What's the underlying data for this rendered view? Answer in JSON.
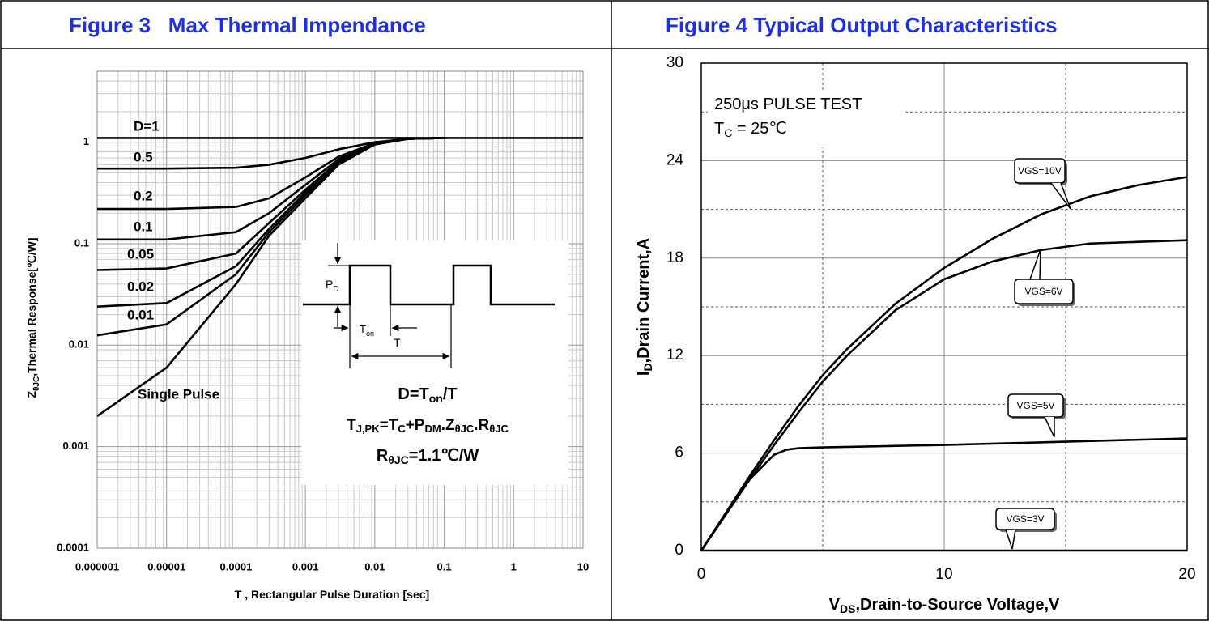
{
  "chart_data": [
    {
      "type": "line",
      "title": "Figure 3   Max Thermal Impendance",
      "x_label": [
        "T , Rectangular Pulse Duration [sec]"
      ],
      "y_label": [
        "Z",
        "θJC",
        ",Thermal Response[℃/W]"
      ],
      "xscale": "log",
      "yscale": "log",
      "grid": true,
      "xlim": [
        1e-06,
        10
      ],
      "xticks": [
        1e-06,
        1e-05,
        0.0001,
        0.001,
        0.01,
        0.1,
        1,
        10
      ],
      "ylim": [
        0.0001,
        5
      ],
      "yticks": [
        0.0001,
        0.001,
        0.01,
        0.1,
        1
      ],
      "x": [
        1e-06,
        1e-05,
        0.0001,
        0.0003,
        0.001,
        0.003,
        0.01,
        0.03,
        0.1
      ],
      "series": [
        {
          "name": "D=1",
          "color": "#000000",
          "x": [
            1e-06,
            10
          ],
          "values": [
            1.1,
            1.1
          ]
        },
        {
          "name": "0.5",
          "color": "#000000",
          "values": [
            0.55,
            0.55,
            0.56,
            0.6,
            0.7,
            0.85,
            1.0,
            1.08,
            1.1
          ]
        },
        {
          "name": "0.2",
          "color": "#000000",
          "values": [
            0.22,
            0.22,
            0.23,
            0.28,
            0.45,
            0.72,
            0.98,
            1.08,
            1.1
          ]
        },
        {
          "name": "0.1",
          "color": "#000000",
          "values": [
            0.11,
            0.11,
            0.13,
            0.2,
            0.38,
            0.68,
            0.97,
            1.08,
            1.1
          ]
        },
        {
          "name": "0.05",
          "color": "#000000",
          "values": [
            0.055,
            0.057,
            0.08,
            0.16,
            0.34,
            0.65,
            0.96,
            1.08,
            1.1
          ]
        },
        {
          "name": "0.02",
          "color": "#000000",
          "values": [
            0.024,
            0.026,
            0.06,
            0.14,
            0.32,
            0.63,
            0.96,
            1.08,
            1.1
          ]
        },
        {
          "name": "0.01",
          "color": "#000000",
          "values": [
            0.0125,
            0.016,
            0.05,
            0.13,
            0.3,
            0.62,
            0.95,
            1.08,
            1.1
          ]
        },
        {
          "name": "Single Pulse",
          "color": "#000000",
          "values": [
            0.002,
            0.006,
            0.04,
            0.12,
            0.28,
            0.6,
            0.95,
            1.08,
            1.1
          ]
        }
      ],
      "inset": {
        "pd": [
          "P",
          "D"
        ],
        "ton": [
          "T",
          "on"
        ],
        "t": [
          "T"
        ],
        "formula_1": [
          "D=T",
          "on",
          "/T"
        ],
        "formula_2": [
          "T",
          "J,PK",
          "=T",
          "C",
          "+P",
          "DM",
          ".Z",
          "θJC",
          ".R",
          "θJC"
        ],
        "formula_3": [
          "R",
          "θJC",
          "=1.1℃/W"
        ]
      }
    },
    {
      "type": "line",
      "title": "Figure 4 Typical Output Characteristics",
      "x_label": [
        "V",
        "DS",
        ",Drain-to-Source Voltage,V"
      ],
      "y_label": [
        "I",
        "D",
        ",Drain Current,A"
      ],
      "grid": true,
      "xlim": [
        0,
        20
      ],
      "xticks": [
        0,
        10,
        20
      ],
      "xminor": [
        5,
        15
      ],
      "ylim": [
        0,
        30
      ],
      "yticks": [
        0,
        6,
        12,
        18,
        24,
        30
      ],
      "yminor": [
        3,
        9,
        15,
        21,
        27
      ],
      "annotation_1": [
        "250μs PULSE TEST"
      ],
      "annotation_2": [
        "T",
        "C",
        " = 25℃"
      ],
      "x": [
        0,
        1,
        2,
        3,
        4,
        5,
        6,
        8,
        10,
        12,
        14,
        16,
        18,
        20
      ],
      "series": [
        {
          "name": "VGS=10V",
          "color": "#000000",
          "values": [
            0,
            2.3,
            4.6,
            6.8,
            8.9,
            10.8,
            12.4,
            15.2,
            17.4,
            19.2,
            20.7,
            21.8,
            22.5,
            23.0
          ]
        },
        {
          "name": "VGS=6V",
          "color": "#000000",
          "values": [
            0,
            2.2,
            4.4,
            6.5,
            8.5,
            10.4,
            12.0,
            14.8,
            16.7,
            17.8,
            18.5,
            18.9,
            19.0,
            19.1
          ]
        },
        {
          "name": "VGS=5V",
          "color": "#000000",
          "x": [
            0,
            1,
            2,
            3,
            3.5,
            4,
            5,
            10,
            15,
            20
          ],
          "values": [
            0,
            2.2,
            4.4,
            5.9,
            6.2,
            6.3,
            6.35,
            6.5,
            6.7,
            6.9
          ]
        },
        {
          "name": "VGS=3V",
          "color": "#000000",
          "x": [
            0,
            20
          ],
          "values": [
            0,
            0
          ]
        }
      ]
    }
  ]
}
